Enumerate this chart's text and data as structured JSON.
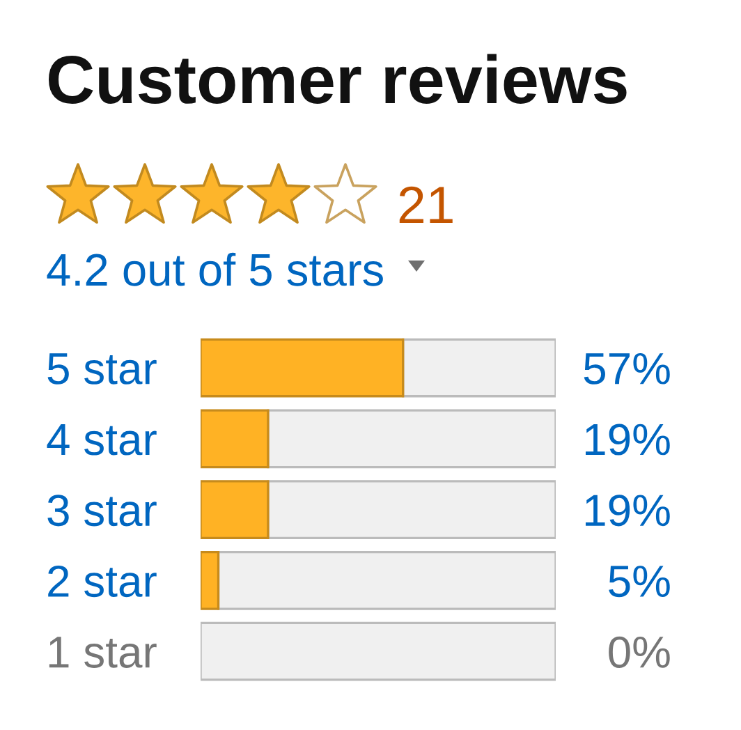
{
  "chart_data": {
    "type": "bar",
    "orientation": "horizontal",
    "stacked": true,
    "title": "Customer reviews",
    "categories": [
      "5 star",
      "4 star",
      "3 star",
      "2 star",
      "1 star"
    ],
    "series": [
      {
        "color": "#ffb224",
        "values": [
          57,
          19,
          19,
          5,
          0
        ],
        "value_labels": [
          "57%",
          "19%",
          "19%",
          "5%",
          "0%"
        ]
      },
      {
        "color": "#f0f0f0",
        "values": [
          43,
          81,
          81,
          95,
          100
        ]
      }
    ],
    "xlim": [
      0,
      100
    ],
    "tick_labels": "y",
    "annotations": [
      "21",
      "4.2 out of 5 stars"
    ]
  }
}
